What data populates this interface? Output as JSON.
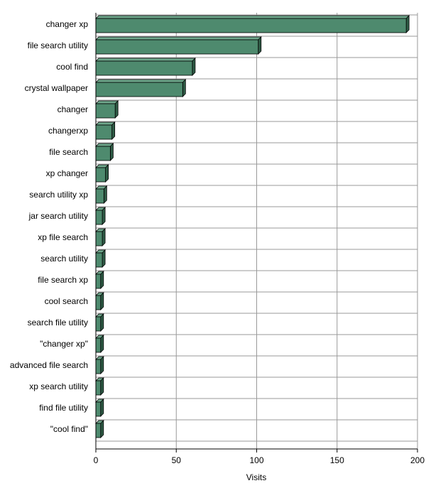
{
  "chart_data": {
    "type": "bar",
    "orientation": "horizontal",
    "categories": [
      "changer xp",
      "file search utility",
      "cool find",
      "crystal wallpaper",
      "changer",
      "changerxp",
      "file search",
      "xp changer",
      "search utility xp",
      "jar search utility",
      "xp file search",
      "search utility",
      "file search xp",
      "cool search",
      "search file utility",
      "\"changer xp\"",
      "advanced file search",
      "xp search utility",
      "find file utility",
      "\"cool find\""
    ],
    "values": [
      193,
      101,
      60,
      54,
      12,
      10,
      9,
      6,
      5,
      4,
      4,
      4,
      3,
      3,
      3,
      3,
      3,
      3,
      3,
      3
    ],
    "xlabel": "Visits",
    "ylabel": "",
    "xlim": [
      0,
      200
    ],
    "xticks": [
      0,
      50,
      100,
      150,
      200
    ],
    "grid": true,
    "legend": "none",
    "colors": {
      "bar_front": "#4e8a6e",
      "bar_top": "#6fa88c",
      "bar_side": "#2f5c46",
      "bar_stroke": "#000000",
      "grid": "#999999",
      "axis": "#000000"
    }
  }
}
